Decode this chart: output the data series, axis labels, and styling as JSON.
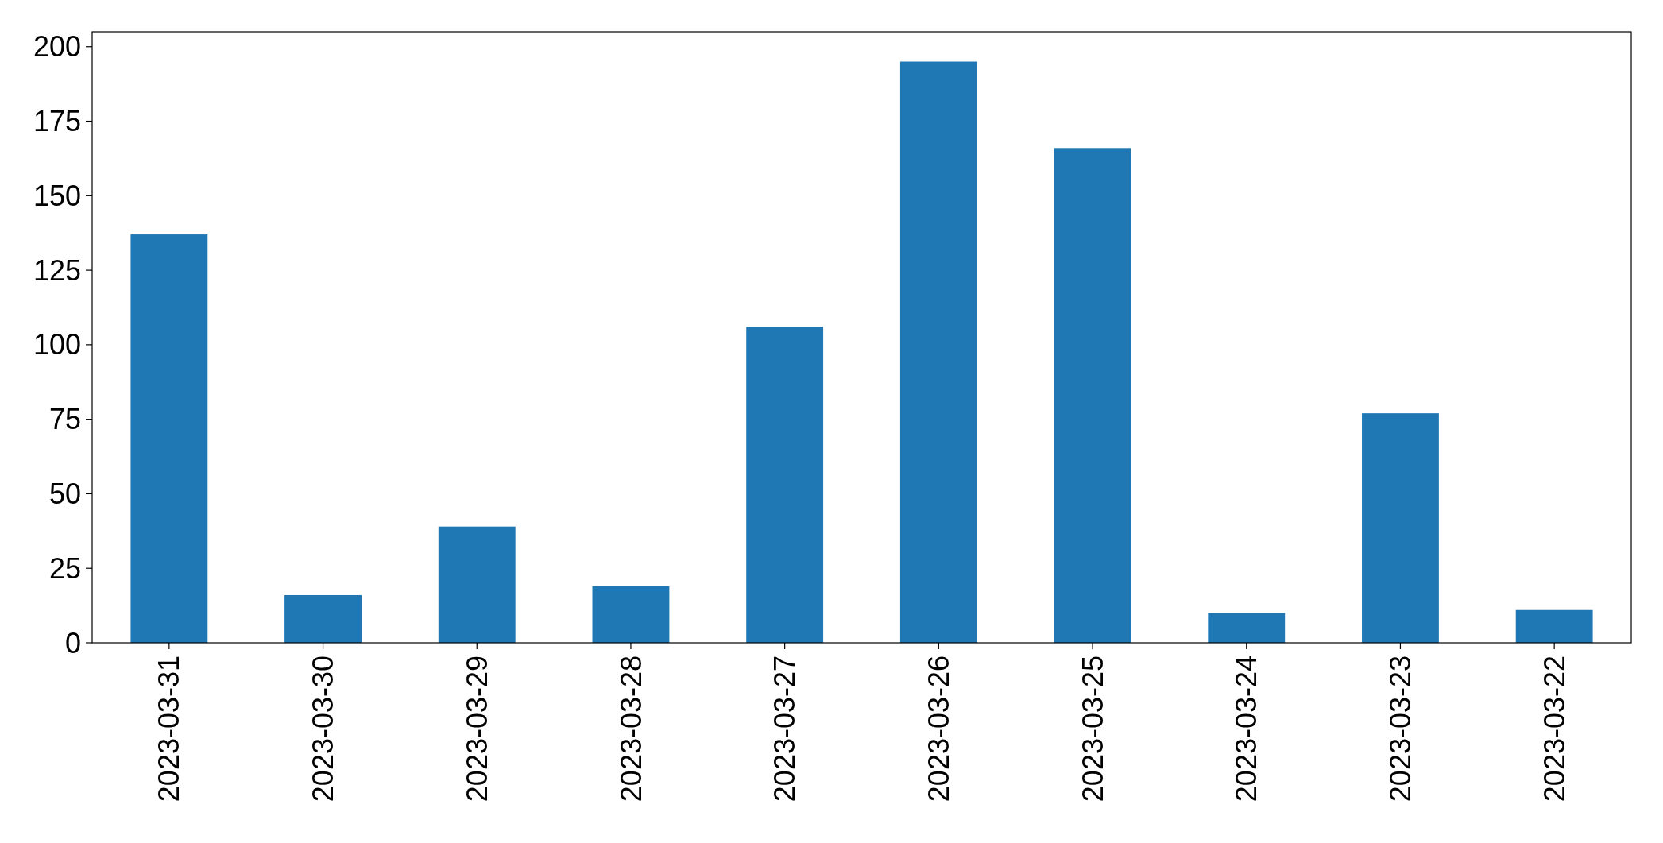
{
  "chart_data": {
    "type": "bar",
    "categories": [
      "2023-03-31",
      "2023-03-30",
      "2023-03-29",
      "2023-03-28",
      "2023-03-27",
      "2023-03-26",
      "2023-03-25",
      "2023-03-24",
      "2023-03-23",
      "2023-03-22"
    ],
    "values": [
      137,
      16,
      39,
      19,
      106,
      195,
      166,
      10,
      77,
      11
    ],
    "color": "#1f77b4",
    "ylim": [
      0,
      205
    ],
    "yticks": [
      0,
      25,
      50,
      75,
      100,
      125,
      150,
      175,
      200
    ],
    "grid": false
  }
}
